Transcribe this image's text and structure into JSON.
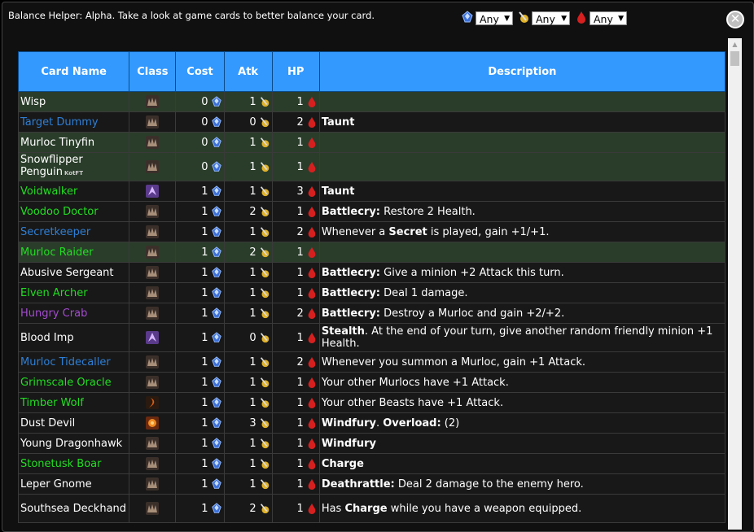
{
  "header": {
    "title": "Balance Helper: Alpha. Take a look at game cards to better balance your card.",
    "filters": [
      {
        "stat": "cost",
        "icon": "mana-gem-icon",
        "value": "Any"
      },
      {
        "stat": "attack",
        "icon": "attack-sword-icon",
        "value": "Any"
      },
      {
        "stat": "health",
        "icon": "health-drop-icon",
        "value": "Any"
      }
    ],
    "close_label": "✕"
  },
  "table": {
    "columns": [
      "Card Name",
      "Class",
      "Cost",
      "Atk",
      "HP",
      "Description"
    ],
    "rows": [
      {
        "name": "Wisp",
        "color": "white",
        "class_icon": "neutral-class-icon",
        "cost": "0",
        "atk": "1",
        "hp": "1",
        "desc": "",
        "style": "green"
      },
      {
        "name": "Target Dummy",
        "color": "blue",
        "class_icon": "neutral-class-icon",
        "cost": "0",
        "atk": "0",
        "hp": "2",
        "desc": "<b>Taunt</b>",
        "style": "dark"
      },
      {
        "name": "Murloc Tinyfin",
        "color": "white",
        "class_icon": "neutral-class-icon",
        "cost": "0",
        "atk": "1",
        "hp": "1",
        "desc": "",
        "style": "green"
      },
      {
        "name": "Snowflipper Penguin",
        "set": "KotFT",
        "color": "white",
        "class_icon": "neutral-class-icon",
        "cost": "0",
        "atk": "1",
        "hp": "1",
        "desc": "",
        "style": "green",
        "tall": true
      },
      {
        "name": "Voidwalker",
        "color": "green",
        "class_icon": "warlock-class-icon",
        "cost": "1",
        "atk": "1",
        "hp": "3",
        "desc": "<b>Taunt</b>",
        "style": "dark"
      },
      {
        "name": "Voodoo Doctor",
        "color": "green",
        "class_icon": "neutral-class-icon",
        "cost": "1",
        "atk": "2",
        "hp": "1",
        "desc": "<b>Battlecry:</b> Restore 2 Health.",
        "style": "dark"
      },
      {
        "name": "Secretkeeper",
        "color": "blue",
        "class_icon": "neutral-class-icon",
        "cost": "1",
        "atk": "1",
        "hp": "2",
        "desc": "Whenever a <b>Secret</b> is played, gain +1/+1.",
        "style": "dark"
      },
      {
        "name": "Murloc Raider",
        "color": "green",
        "class_icon": "neutral-class-icon",
        "cost": "1",
        "atk": "2",
        "hp": "1",
        "desc": "",
        "style": "green"
      },
      {
        "name": "Abusive Sergeant",
        "color": "white",
        "class_icon": "neutral-class-icon",
        "cost": "1",
        "atk": "1",
        "hp": "1",
        "desc": "<b>Battlecry:</b> Give a minion +2 Attack this turn.",
        "style": "dark"
      },
      {
        "name": "Elven Archer",
        "color": "green",
        "class_icon": "neutral-class-icon",
        "cost": "1",
        "atk": "1",
        "hp": "1",
        "desc": "<b>Battlecry:</b> Deal 1 damage.",
        "style": "dark"
      },
      {
        "name": "Hungry Crab",
        "color": "purple",
        "class_icon": "neutral-class-icon",
        "cost": "1",
        "atk": "1",
        "hp": "2",
        "desc": "<b>Battlecry:</b> Destroy a Murloc and gain +2/+2.",
        "style": "dark"
      },
      {
        "name": "Blood Imp",
        "color": "white",
        "class_icon": "warlock-class-icon",
        "cost": "1",
        "atk": "0",
        "hp": "1",
        "desc": "<b>Stealth</b>. At the end of your turn, give another random friendly minion +1 Health.",
        "style": "dark",
        "tall": true
      },
      {
        "name": "Murloc Tidecaller",
        "color": "blue",
        "class_icon": "neutral-class-icon",
        "cost": "1",
        "atk": "1",
        "hp": "2",
        "desc": "Whenever you summon a Murloc, gain +1 Attack.",
        "style": "dark"
      },
      {
        "name": "Grimscale Oracle",
        "color": "green",
        "class_icon": "neutral-class-icon",
        "cost": "1",
        "atk": "1",
        "hp": "1",
        "desc": "Your other Murlocs have +1 Attack.",
        "style": "dark"
      },
      {
        "name": "Timber Wolf",
        "color": "green",
        "class_icon": "hunter-class-icon",
        "cost": "1",
        "atk": "1",
        "hp": "1",
        "desc": "Your other Beasts have +1 Attack.",
        "style": "dark"
      },
      {
        "name": "Dust Devil",
        "color": "white",
        "class_icon": "shaman-class-icon",
        "cost": "1",
        "atk": "3",
        "hp": "1",
        "desc": "<b>Windfury</b>. <b>Overload:</b> (2)",
        "style": "dark"
      },
      {
        "name": "Young Dragonhawk",
        "color": "white",
        "class_icon": "neutral-class-icon",
        "cost": "1",
        "atk": "1",
        "hp": "1",
        "desc": "<b>Windfury</b>",
        "style": "dark"
      },
      {
        "name": "Stonetusk Boar",
        "color": "green",
        "class_icon": "neutral-class-icon",
        "cost": "1",
        "atk": "1",
        "hp": "1",
        "desc": "<b>Charge</b>",
        "style": "dark"
      },
      {
        "name": "Leper Gnome",
        "color": "white",
        "class_icon": "neutral-class-icon",
        "cost": "1",
        "atk": "1",
        "hp": "1",
        "desc": "<b>Deathrattle:</b> Deal 2 damage to the enemy hero.",
        "style": "dark"
      },
      {
        "name": "Southsea Deckhand",
        "color": "white",
        "class_icon": "neutral-class-icon",
        "cost": "1",
        "atk": "2",
        "hp": "1",
        "desc": "Has <b>Charge</b> while you have a weapon equipped.",
        "style": "dark",
        "tall": true
      }
    ]
  },
  "colors": {
    "header_blue": "#3399ff",
    "row_green": "#2a3d2a",
    "row_dark": "#181818",
    "name_blue": "#2e7fd6",
    "name_green": "#22dd22",
    "name_purple": "#a34ccf"
  }
}
